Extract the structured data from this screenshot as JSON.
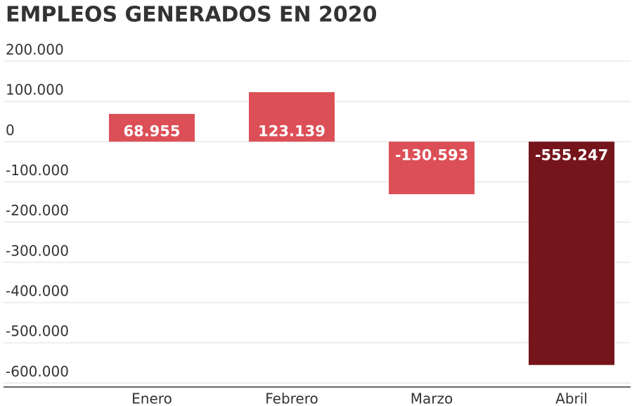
{
  "chart_data": {
    "type": "bar",
    "title": "EMPLEOS GENERADOS EN 2020",
    "categories": [
      "Enero",
      "Febrero",
      "Marzo",
      "Abril"
    ],
    "values": [
      68955,
      123139,
      -130593,
      -555247
    ],
    "value_labels": [
      "68.955",
      "123.139",
      "-130.593",
      "-555.247"
    ],
    "colors": [
      "#dc4f57",
      "#dc4f57",
      "#dc4f57",
      "#76141b"
    ],
    "ylim": [
      -610000,
      200000
    ],
    "yticks": [
      {
        "value": 200000,
        "label": "200.000"
      },
      {
        "value": 100000,
        "label": "100.000"
      },
      0,
      {
        "value": -100000,
        "label": "-100.000"
      },
      {
        "value": -200000,
        "label": "-200.000"
      },
      {
        "value": -300000,
        "label": "-300.000"
      },
      {
        "value": -400000,
        "label": "-400.000"
      },
      {
        "value": -500000,
        "label": "-500.000"
      },
      {
        "value": -600000,
        "label": "-600.000"
      }
    ],
    "grid": true
  }
}
